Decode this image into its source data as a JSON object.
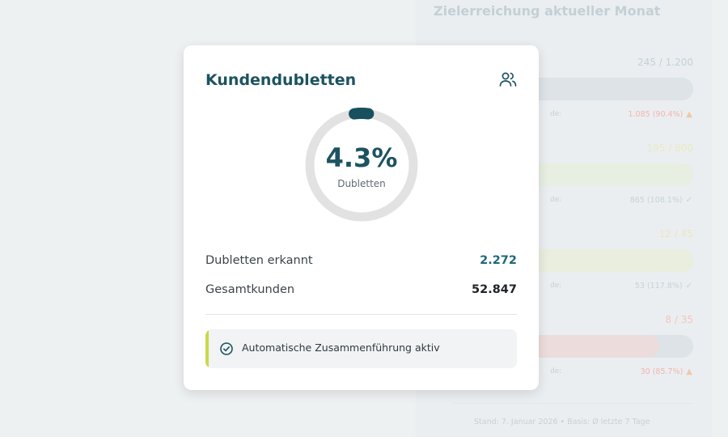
{
  "background_panel": {
    "title": "Zielerreichung aktueller Monat",
    "rows": [
      {
        "count": "245 / 1.200",
        "count_color": "#c4d0d6",
        "fill_fraction": 0.9,
        "fill_color": "#dde3e6",
        "prog_label": "de:",
        "prog_value": "1.085 (90.4%)",
        "prog_color": "#f2b5b0",
        "status_icon": "warning-icon",
        "icon_glyph": "▲",
        "icon_color": "#f0c8a6"
      },
      {
        "count": "195 / 800",
        "count_color": "#e8eac0",
        "fill_fraction": 1.0,
        "fill_color": "#e6efe1",
        "prog_label": "de:",
        "prog_value": "865 (108.1%)",
        "prog_color": "#c7d2d6",
        "status_icon": "check-icon",
        "icon_glyph": "✓",
        "icon_color": "#c7d2d6"
      },
      {
        "count": "12 / 45",
        "count_color": "#ece6c0",
        "fill_fraction": 1.0,
        "fill_color": "#e9eede",
        "prog_label": "de:",
        "prog_value": "53 (117.8%)",
        "prog_color": "#c7d2d6",
        "status_icon": "check-icon",
        "icon_glyph": "✓",
        "icon_color": "#c7d2d6"
      },
      {
        "count": "8 / 35",
        "count_color": "#f2c6bf",
        "fill_fraction": 0.86,
        "fill_color": "#ecdcdc",
        "prog_label": "de:",
        "prog_value": "30 (85.7%)",
        "prog_color": "#f2b5b0",
        "status_icon": "warning-icon",
        "icon_glyph": "▲",
        "icon_color": "#f0c8a6"
      }
    ],
    "footer": "Stand: 7. Januar 2026 • Basis: Ø letzte 7 Tage"
  },
  "card": {
    "title": "Kundendubletten",
    "header_icon": "users-icon",
    "gauge": {
      "value": "4.3%",
      "label": "Dubletten",
      "fraction": 0.043,
      "track_color": "#e2e2e2",
      "fill_color": "#17505f"
    },
    "stats": [
      {
        "label": "Dubletten erkannt",
        "value": "2.272",
        "color": "#1c6878"
      },
      {
        "label": "Gesamtkunden",
        "value": "52.847",
        "color": "#1e2428"
      }
    ],
    "status": {
      "text": "Automatische Zusammenführung aktiv",
      "icon": "check-circle-icon",
      "accent_color": "#c9d84a"
    }
  }
}
